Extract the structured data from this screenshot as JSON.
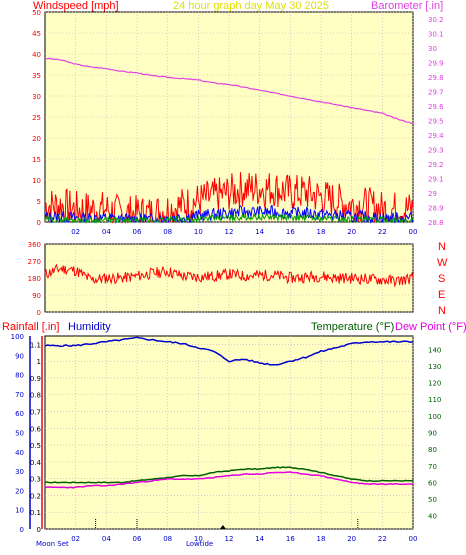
{
  "header": {
    "title": "24 hour graph day   May 30 2025",
    "left_label": "Windspeed [mph]",
    "right_label": "Barometer [.in]"
  },
  "direction_letters": [
    "N",
    "W",
    "S",
    "E",
    "N"
  ],
  "bottom_header": {
    "rain_label": "Rainfall [.in]",
    "humidity_label": "Humidity",
    "temp_label": "Temperature (°F)",
    "dew_label": "Dew Point (°F)"
  },
  "bottom_footer": {
    "moon_label": "Moon Set",
    "lowtide_label": "Lowtide"
  },
  "colors": {
    "plot_bg": "#ffffc4",
    "wind": "#ff0000",
    "gust_low": "#0000ff",
    "gust_green": "#00a000",
    "barometer": "#e040e0",
    "direction": "#ff0000",
    "humidity": "#0000cc",
    "temperature": "#006000",
    "dewpoint": "#e000e0",
    "title": "#e0e000"
  },
  "chart_data": [
    {
      "type": "line",
      "xlabel": "",
      "x_ticks": [
        "02",
        "04",
        "06",
        "08",
        "10",
        "12",
        "14",
        "16",
        "18",
        "20",
        "22",
        "00"
      ],
      "y_ticks_left": [
        "0",
        "5",
        "10",
        "15",
        "20",
        "25",
        "30",
        "35",
        "40",
        "45",
        "50"
      ],
      "ylim_left": [
        0,
        50
      ],
      "y_ticks_right": [
        "28.8",
        "28.9",
        "29",
        "29.1",
        "29.2",
        "29.3",
        "29.4",
        "29.5",
        "29.6",
        "29.7",
        "29.8",
        "29.9",
        "30",
        "30.1",
        "30.2"
      ],
      "ylim_right": [
        28.8,
        30.25
      ],
      "series": [
        {
          "name": "Windspeed",
          "axis": "left",
          "x": [
            0,
            1,
            2,
            3,
            4,
            5,
            6,
            7,
            8,
            9,
            10,
            11,
            12,
            13,
            14,
            15,
            16,
            17,
            18,
            19,
            20,
            21,
            22,
            23,
            24
          ],
          "values": [
            4,
            4,
            3,
            3,
            3,
            2,
            2,
            2,
            3,
            4,
            5,
            6,
            7,
            8,
            8,
            8,
            7,
            7,
            6,
            5,
            4,
            4,
            3,
            3,
            3
          ]
        },
        {
          "name": "Barometer",
          "axis": "right",
          "x": [
            0,
            1,
            2,
            3,
            4,
            5,
            6,
            7,
            8,
            9,
            10,
            11,
            12,
            13,
            14,
            15,
            16,
            17,
            18,
            19,
            20,
            21,
            22,
            23,
            24
          ],
          "values": [
            29.93,
            29.92,
            29.89,
            29.87,
            29.86,
            29.84,
            29.83,
            29.81,
            29.8,
            29.79,
            29.78,
            29.76,
            29.75,
            29.73,
            29.71,
            29.69,
            29.67,
            29.65,
            29.63,
            29.61,
            29.59,
            29.57,
            29.55,
            29.51,
            29.48
          ]
        }
      ]
    },
    {
      "type": "line",
      "y_ticks_left": [
        "0",
        "90",
        "180",
        "270",
        "360"
      ],
      "ylim": [
        0,
        360
      ],
      "series": [
        {
          "name": "Wind Direction",
          "x": [
            0,
            1,
            2,
            3,
            4,
            5,
            6,
            7,
            8,
            9,
            10,
            11,
            12,
            13,
            14,
            15,
            16,
            17,
            18,
            19,
            20,
            21,
            22,
            23,
            24
          ],
          "values": [
            200,
            230,
            220,
            170,
            180,
            180,
            190,
            205,
            215,
            190,
            185,
            190,
            200,
            190,
            195,
            195,
            180,
            185,
            190,
            180,
            180,
            175,
            170,
            165,
            180
          ]
        }
      ]
    },
    {
      "type": "line",
      "y_ticks_left": [
        "0",
        "0.1",
        "0.2",
        "0.3",
        "0.4",
        "0.5",
        "0.6",
        "0.7",
        "0.8",
        "0.9",
        "1",
        "1.1"
      ],
      "ylim_left": [
        0,
        1.15
      ],
      "y_ticks_middle": [
        "0",
        "10",
        "20",
        "30",
        "40",
        "50",
        "60",
        "70",
        "80",
        "90",
        "100"
      ],
      "ylim_middle": [
        0,
        100
      ],
      "y_ticks_right": [
        "40",
        "50",
        "60",
        "70",
        "80",
        "90",
        "100",
        "110",
        "120",
        "130",
        "140"
      ],
      "ylim_right": [
        32,
        148
      ],
      "series": [
        {
          "name": "Humidity",
          "x": [
            0,
            1,
            2,
            3,
            4,
            5,
            6,
            7,
            8,
            9,
            10,
            11,
            12,
            13,
            14,
            15,
            16,
            17,
            18,
            19,
            20,
            21,
            22,
            23,
            24
          ],
          "values": [
            95,
            95,
            95,
            96,
            97,
            98,
            99,
            98,
            97,
            96,
            94,
            92,
            87,
            88,
            86,
            85,
            87,
            89,
            92,
            94,
            96,
            97,
            97,
            97,
            97
          ]
        },
        {
          "name": "Temperature",
          "x": [
            0,
            1,
            2,
            3,
            4,
            5,
            6,
            7,
            8,
            9,
            10,
            11,
            12,
            13,
            14,
            15,
            16,
            17,
            18,
            19,
            20,
            21,
            22,
            23,
            24
          ],
          "values": [
            60,
            60,
            60,
            60,
            60,
            60,
            61,
            62,
            63,
            64,
            64,
            66,
            67,
            68,
            68,
            69,
            69,
            68,
            66,
            64,
            62,
            61,
            61,
            61,
            61
          ]
        },
        {
          "name": "Dew Point",
          "x": [
            0,
            1,
            2,
            3,
            4,
            5,
            6,
            7,
            8,
            9,
            10,
            11,
            12,
            13,
            14,
            15,
            16,
            17,
            18,
            19,
            20,
            21,
            22,
            23,
            24
          ],
          "values": [
            57,
            57,
            57,
            58,
            58,
            59,
            60,
            61,
            62,
            62,
            62,
            63,
            64,
            65,
            65,
            66,
            66,
            65,
            64,
            62,
            60,
            59,
            59,
            59,
            59
          ]
        }
      ]
    }
  ]
}
